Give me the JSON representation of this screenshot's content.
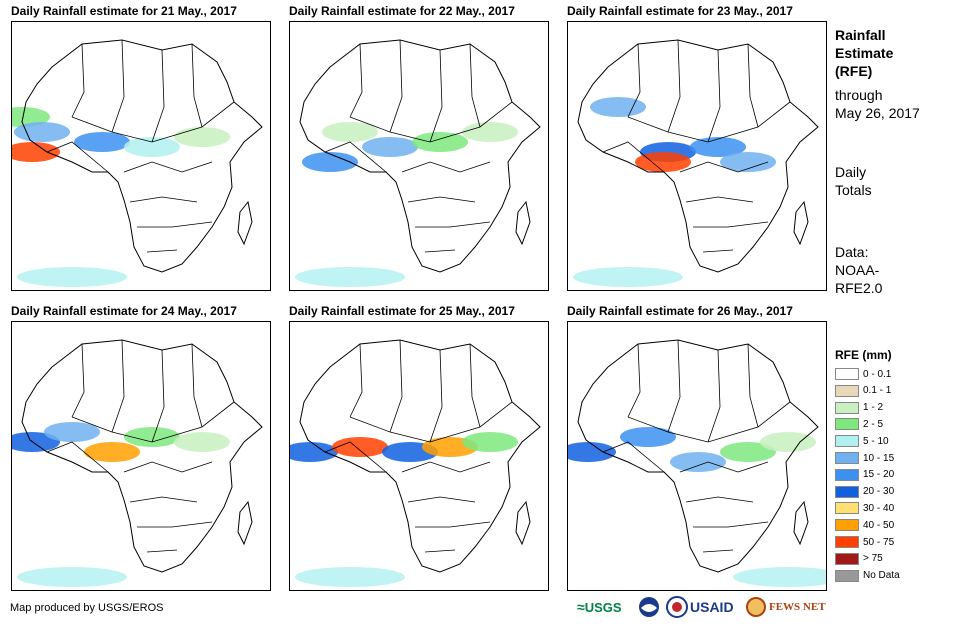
{
  "panels": [
    {
      "title": "Daily Rainfall estimate for 21 May., 2017"
    },
    {
      "title": "Daily Rainfall estimate for 22 May., 2017"
    },
    {
      "title": "Daily Rainfall estimate for 23 May., 2017"
    },
    {
      "title": "Daily Rainfall estimate for 24 May., 2017"
    },
    {
      "title": "Daily Rainfall estimate for 25 May., 2017"
    },
    {
      "title": "Daily Rainfall estimate for 26 May., 2017"
    }
  ],
  "info": {
    "line1": "Rainfall",
    "line2": "Estimate",
    "line3": "(RFE)",
    "line4": "through",
    "line5": "May 26, 2017",
    "daily1": "Daily",
    "daily2": "Totals",
    "data1": "Data:",
    "data2": "NOAA-",
    "data3": "RFE2.0"
  },
  "legend": {
    "title": "RFE (mm)",
    "items": [
      {
        "label": "0 - 0.1",
        "color": "#ffffff"
      },
      {
        "label": "0.1 - 1",
        "color": "#e8d8b8"
      },
      {
        "label": "1 - 2",
        "color": "#c8f0c0"
      },
      {
        "label": "2 - 5",
        "color": "#7ee87e"
      },
      {
        "label": "5 - 10",
        "color": "#b0f0f0"
      },
      {
        "label": "10 - 15",
        "color": "#70b0f0"
      },
      {
        "label": "15 - 20",
        "color": "#3c90f0"
      },
      {
        "label": "20 - 30",
        "color": "#1060e0"
      },
      {
        "label": "30 - 40",
        "color": "#ffe070"
      },
      {
        "label": "40 - 50",
        "color": "#ffa000"
      },
      {
        "label": "50 - 75",
        "color": "#ff4000"
      },
      {
        "label": "> 75",
        "color": "#a01818"
      },
      {
        "label": "No Data",
        "color": "#999999"
      }
    ]
  },
  "credit": "Map produced by USGS/EROS",
  "logos": {
    "usgs": "USGS",
    "usaid": "USAID",
    "fewsnet": "FEWS NET"
  }
}
